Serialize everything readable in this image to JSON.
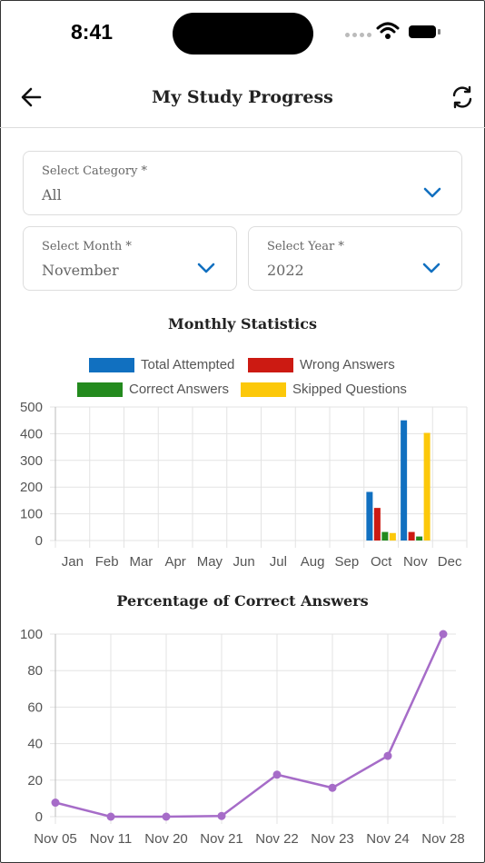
{
  "status": {
    "time": "8:41"
  },
  "header": {
    "title": "My Study Progress"
  },
  "filters": {
    "category": {
      "label": "Select Category *",
      "value": "All"
    },
    "month": {
      "label": "Select Month *",
      "value": "November"
    },
    "year": {
      "label": "Select Year *",
      "value": "2022"
    }
  },
  "colors": {
    "total": "#1170C0",
    "wrong": "#CC1A12",
    "correct": "#238A1E",
    "skipped": "#FCC80A",
    "line": "#A66CC8"
  },
  "chart_data": [
    {
      "type": "bar",
      "title": "Monthly Statistics",
      "categories": [
        "Jan",
        "Feb",
        "Mar",
        "Apr",
        "May",
        "Jun",
        "Jul",
        "Aug",
        "Sep",
        "Oct",
        "Nov",
        "Dec"
      ],
      "series": [
        {
          "name": "Total Attempted",
          "values": [
            0,
            0,
            0,
            0,
            0,
            0,
            0,
            0,
            0,
            182,
            450,
            0
          ]
        },
        {
          "name": "Wrong Answers",
          "values": [
            0,
            0,
            0,
            0,
            0,
            0,
            0,
            0,
            0,
            122,
            32,
            0
          ]
        },
        {
          "name": "Correct Answers",
          "values": [
            0,
            0,
            0,
            0,
            0,
            0,
            0,
            0,
            0,
            32,
            15,
            0
          ]
        },
        {
          "name": "Skipped Questions",
          "values": [
            0,
            0,
            0,
            0,
            0,
            0,
            0,
            0,
            0,
            28,
            403,
            0
          ]
        }
      ],
      "yticks": [
        0,
        100,
        200,
        300,
        400,
        500
      ],
      "ylim": [
        0,
        500
      ],
      "grid": true,
      "legend": "top"
    },
    {
      "type": "line",
      "title": "Percentage of Correct Answers",
      "x": [
        "Nov 05",
        "Nov 11",
        "Nov 20",
        "Nov 21",
        "Nov 22",
        "Nov 23",
        "Nov 24",
        "Nov 28"
      ],
      "values": [
        7.7,
        0,
        0,
        0.4,
        23,
        15.8,
        33.3,
        100
      ],
      "yticks": [
        0,
        20,
        40,
        60,
        80,
        100
      ],
      "ylim": [
        0,
        100
      ],
      "grid": true
    }
  ]
}
